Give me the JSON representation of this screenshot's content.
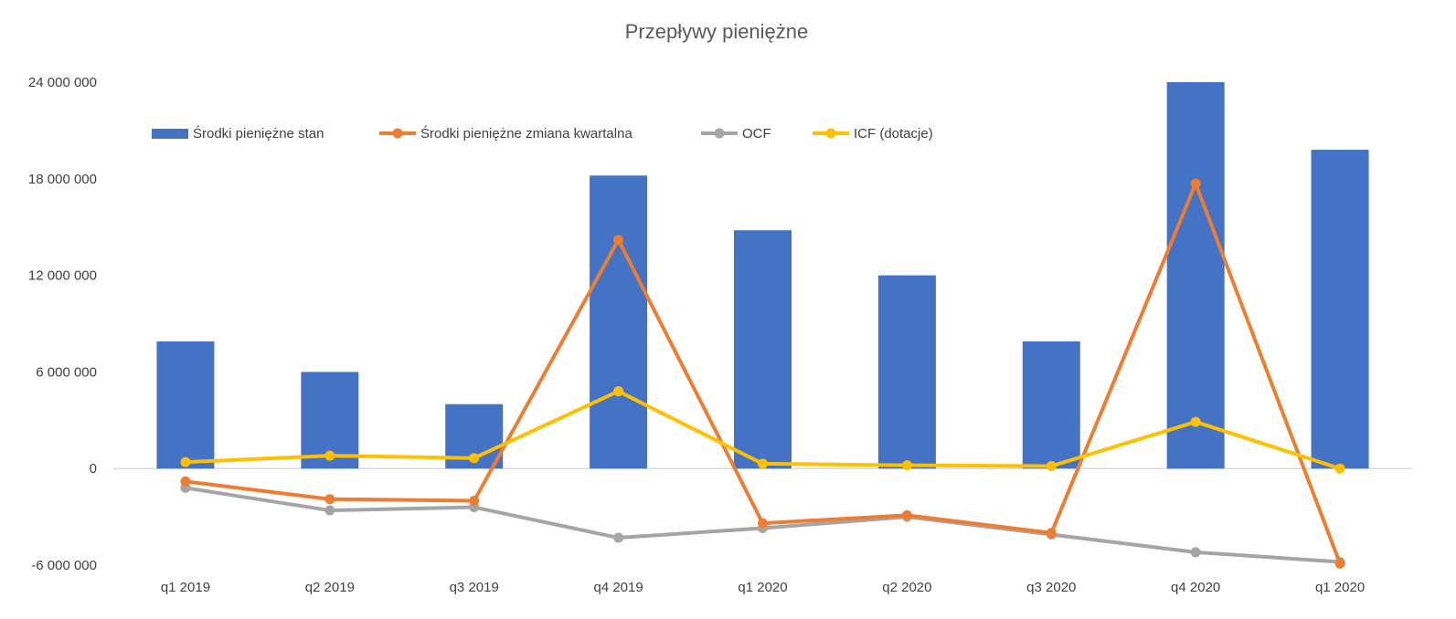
{
  "chart_data": {
    "type": "bar",
    "title": "Przepływy pieniężne",
    "xlabel": "",
    "ylabel": "",
    "categories": [
      "q1 2019",
      "q2 2019",
      "q3 2019",
      "q4 2019",
      "q1 2020",
      "q2 2020",
      "q3 2020",
      "q4 2020",
      "q1 2020"
    ],
    "ylim": [
      -6000000,
      24000000
    ],
    "yticks": [
      -6000000,
      0,
      6000000,
      12000000,
      18000000,
      24000000
    ],
    "ytick_labels": [
      "-6 000 000",
      "0",
      "6 000 000",
      "12 000 000",
      "18 000 000",
      "24 000 000"
    ],
    "legend_position": "top-left",
    "grid": false,
    "series": [
      {
        "name": "Środki pieniężne stan",
        "type": "bar",
        "color": "#4472C4",
        "values": [
          7900000,
          6000000,
          4000000,
          18200000,
          14800000,
          12000000,
          7900000,
          24000000,
          19800000
        ]
      },
      {
        "name": "Środki pieniężne zmiana kwartalna",
        "type": "line",
        "color": "#ED7D31",
        "values": [
          -800000,
          -1900000,
          -2000000,
          14200000,
          -3400000,
          -2900000,
          -4000000,
          17700000,
          -5900000
        ]
      },
      {
        "name": "OCF",
        "type": "line",
        "color": "#A5A5A5",
        "values": [
          -1200000,
          -2600000,
          -2400000,
          -4300000,
          -3700000,
          -3000000,
          -4100000,
          -5200000,
          -5800000
        ]
      },
      {
        "name": "ICF (dotacje)",
        "type": "line",
        "color": "#FFC000",
        "values": [
          400000,
          800000,
          650000,
          4800000,
          300000,
          200000,
          150000,
          2900000,
          0
        ]
      }
    ]
  }
}
